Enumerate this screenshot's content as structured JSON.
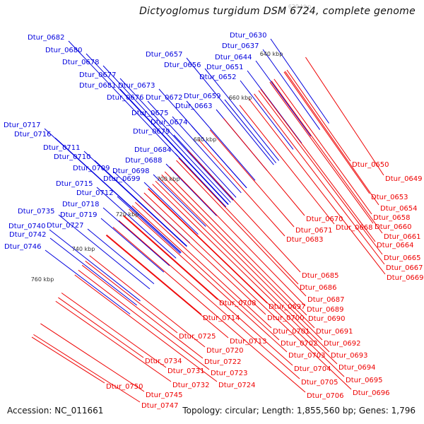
{
  "title": "Dictyoglomus turgidum DSM 6724, complete genome",
  "footer": {
    "accession": "Accession: NC_011661",
    "summary": "Topology: circular; Length: 1,855,560 bp; Genes: 1,796"
  },
  "colors": {
    "forward_label": "#0000dd",
    "reverse_label": "#ee0000",
    "backbone": "#888888",
    "forward_cds": "#0000ee",
    "reverse_cds": "#ee0000",
    "gc_marker": "#118811"
  },
  "ticks": [
    "620 kbp",
    "640 kbp",
    "660 kbp",
    "680 kbp",
    "700 kbp",
    "720 kbp",
    "740 kbp",
    "760 kbp"
  ],
  "forward_labels": [
    "Dtur_0630",
    "Dtur_0637",
    "Dtur_0644",
    "Dtur_0651",
    "Dtur_0652",
    "Dtur_0657",
    "Dtur_0656",
    "Dtur_0659",
    "Dtur_0663",
    "Dtur_0682",
    "Dtur_0680",
    "Dtur_0678",
    "Dtur_0677",
    "Dtur_0681",
    "Dtur_0673",
    "Dtur_0676",
    "Dtur_0672",
    "Dtur_0675",
    "Dtur_0674",
    "Dtur_0679",
    "Dtur_0684",
    "Dtur_0688",
    "Dtur_0698",
    "Dtur_0699",
    "Dtur_0717",
    "Dtur_0716",
    "Dtur_0711",
    "Dtur_0710",
    "Dtur_0709",
    "Dtur_0715",
    "Dtur_0712",
    "Dtur_0718",
    "Dtur_0719",
    "Dtur_0735",
    "Dtur_0740",
    "Dtur_0727",
    "Dtur_0742",
    "Dtur_0746"
  ],
  "reverse_labels": [
    "Dtur_0650",
    "Dtur_0649",
    "Dtur_0653",
    "Dtur_0654",
    "Dtur_0658",
    "Dtur_0670",
    "Dtur_0660",
    "Dtur_0671",
    "Dtur_0668",
    "Dtur_0661",
    "Dtur_0683",
    "Dtur_0664",
    "Dtur_0665",
    "Dtur_0667",
    "Dtur_0669",
    "Dtur_0685",
    "Dtur_0686",
    "Dtur_0687",
    "Dtur_0708",
    "Dtur_0697",
    "Dtur_0689",
    "Dtur_0700",
    "Dtur_0690",
    "Dtur_0714",
    "Dtur_0701",
    "Dtur_0691",
    "Dtur_0713",
    "Dtur_0702",
    "Dtur_0692",
    "Dtur_0725",
    "Dtur_0703",
    "Dtur_0693",
    "Dtur_0720",
    "Dtur_0704",
    "Dtur_0694",
    "Dtur_0722",
    "Dtur_0734",
    "Dtur_0695",
    "Dtur_0731",
    "Dtur_0723",
    "Dtur_0705",
    "Dtur_0696",
    "Dtur_0724",
    "Dtur_0732",
    "Dtur_0750",
    "Dtur_0706",
    "Dtur_0745",
    "Dtur_0747"
  ]
}
